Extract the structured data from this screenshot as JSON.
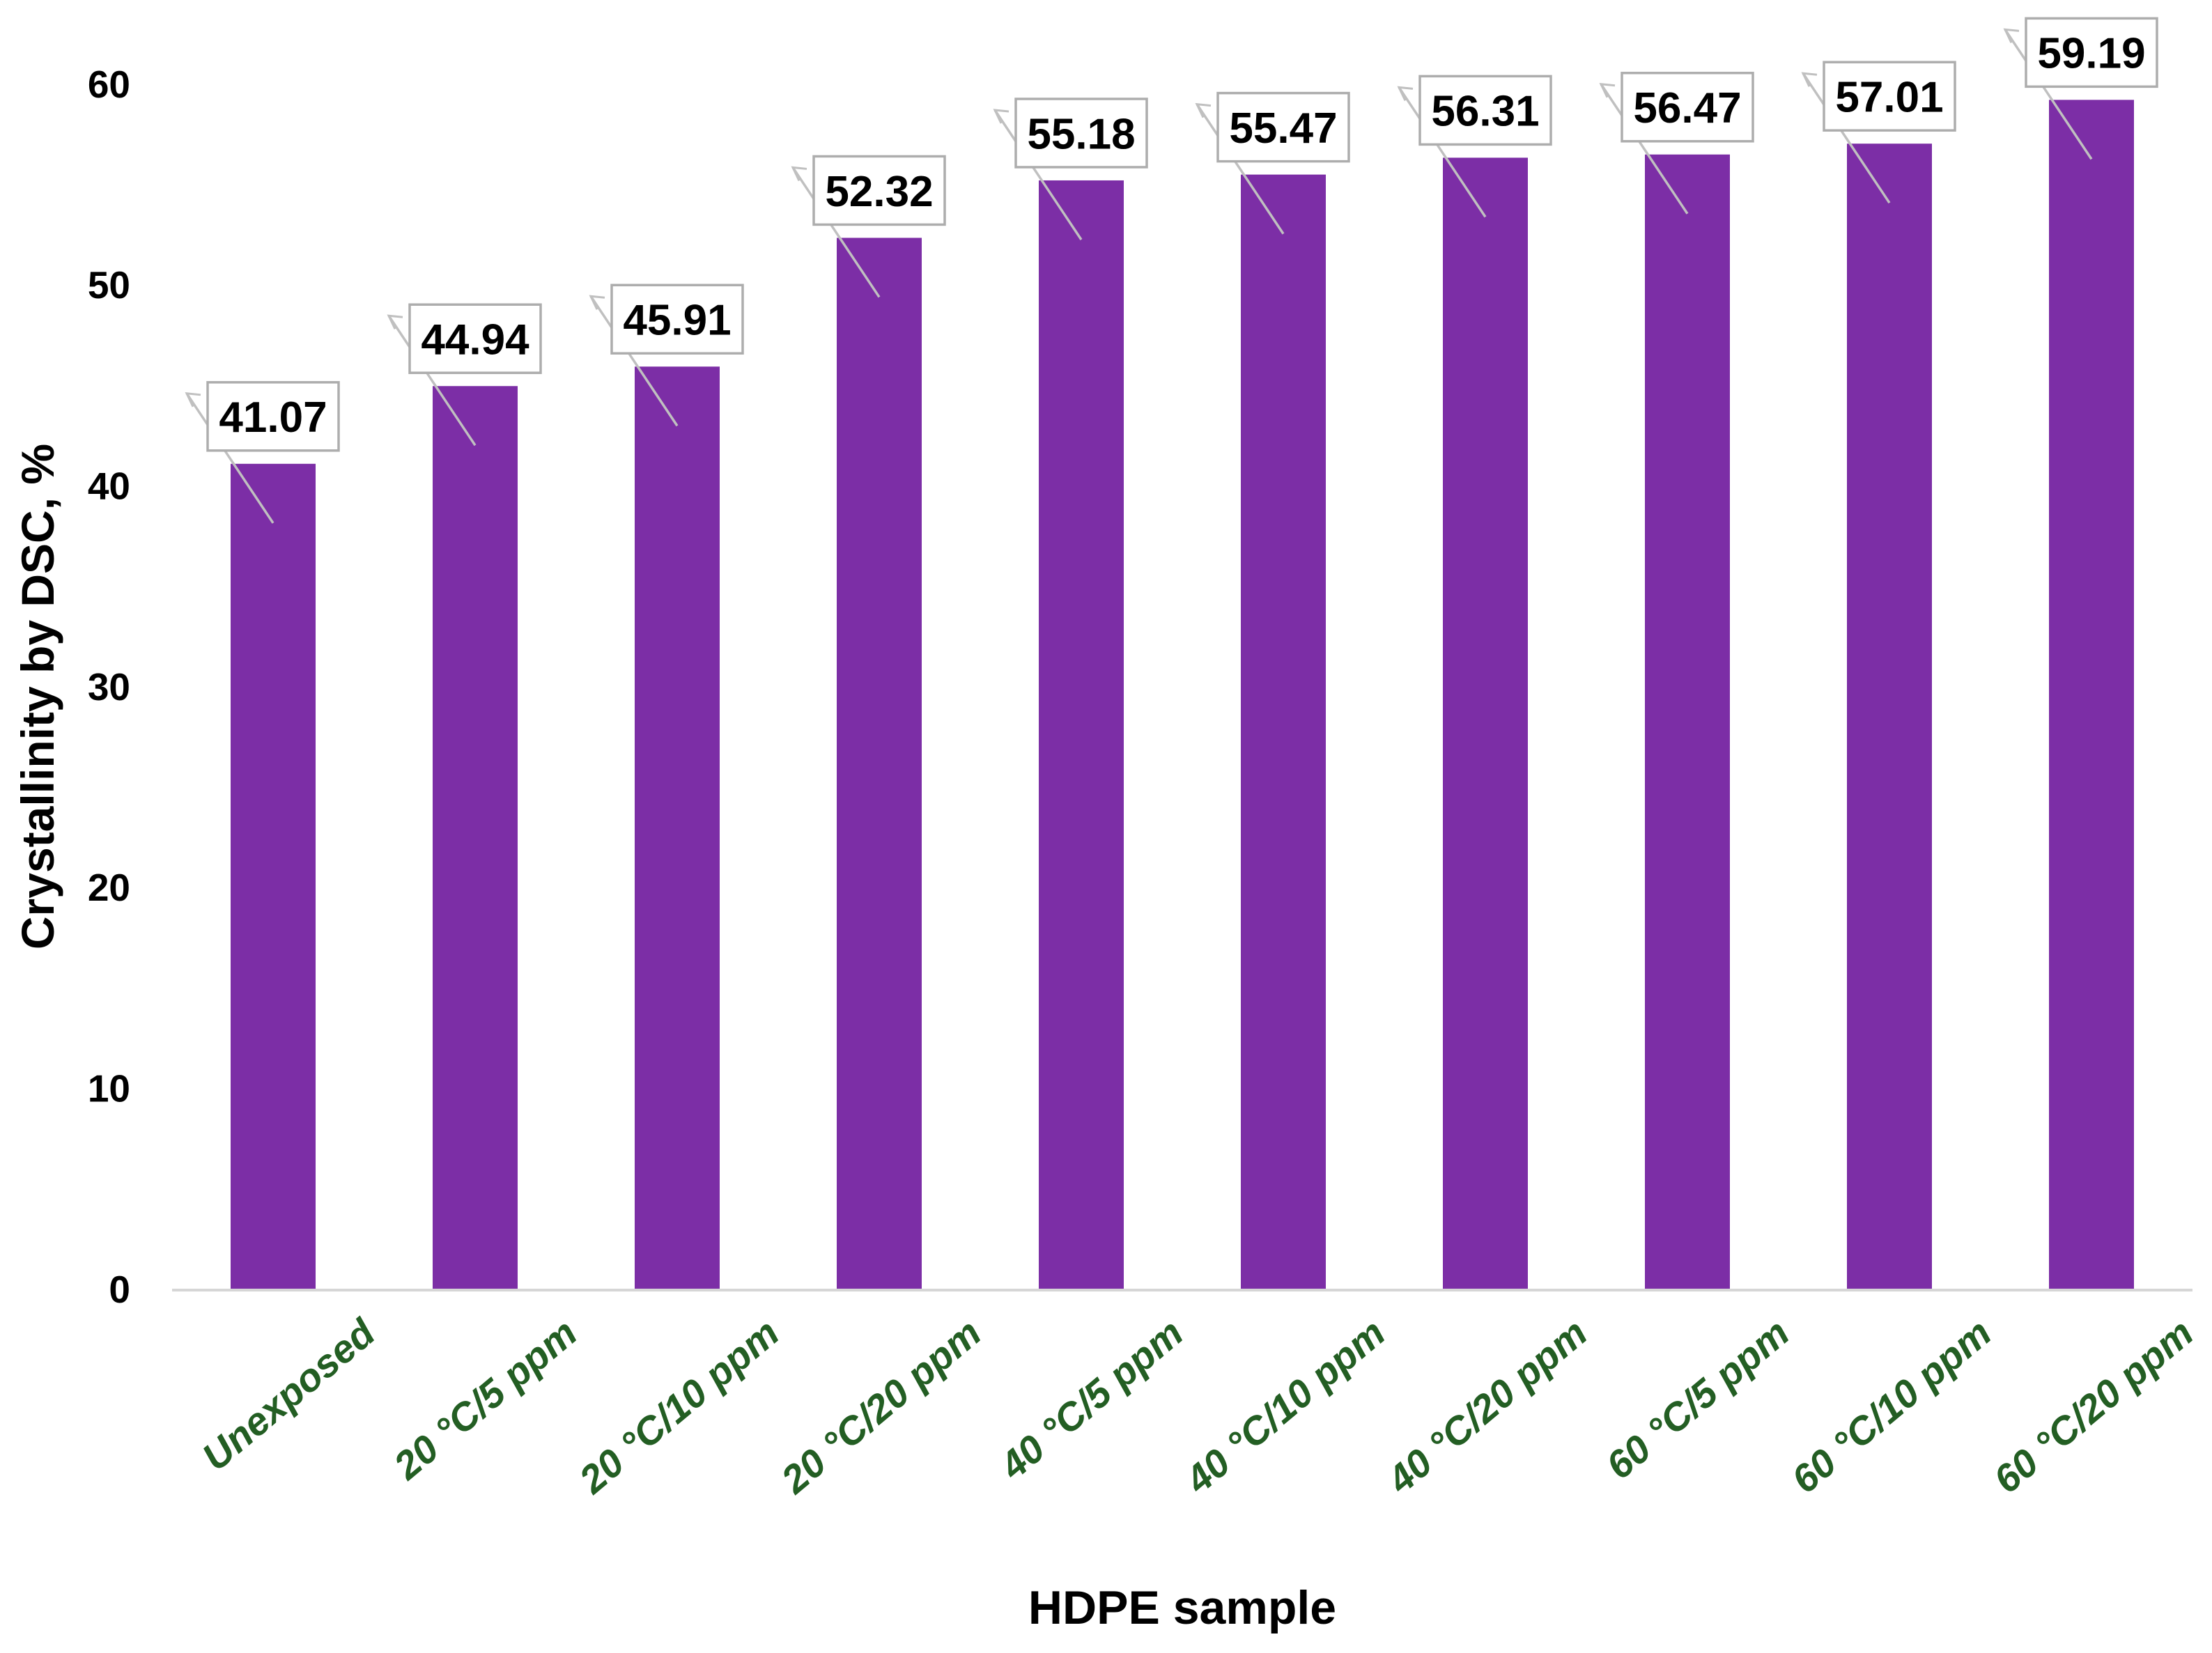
{
  "chart_data": {
    "type": "bar",
    "title": "",
    "xlabel": "HDPE sample",
    "ylabel": "Crystallinity by DSC, %",
    "categories": [
      "Unexposed",
      "20 °C/5 ppm",
      "20 °C/10 ppm",
      "20 °C/20 ppm",
      "40 °C/5 ppm",
      "40 °C/10 ppm",
      "40 °C/20 ppm",
      "60 °C/5 ppm",
      "60 °C/10 ppm",
      "60 °C/20 ppm"
    ],
    "values": [
      41.07,
      44.94,
      45.91,
      52.32,
      55.18,
      55.47,
      56.31,
      56.47,
      57.01,
      59.19
    ],
    "value_labels": [
      "41.07",
      "44.94",
      "45.91",
      "52.32",
      "55.18",
      "55.47",
      "56.31",
      "56.47",
      "57.01",
      "59.19"
    ],
    "yticks": [
      0,
      10,
      20,
      30,
      40,
      50,
      60
    ],
    "ylim": [
      0,
      60
    ],
    "grid": false,
    "legend": "none",
    "data_labels_boxed": true,
    "colors": {
      "bar": "#7C2EA6",
      "value_label_text": "#000000",
      "value_label_box_border": "#ADADAD",
      "value_label_box_fill": "#FFFFFF",
      "leader_line": "#C0C0C0",
      "axis_line": "#D6D6D6",
      "category_label": "#235E23",
      "ytick_label": "#000000"
    }
  }
}
